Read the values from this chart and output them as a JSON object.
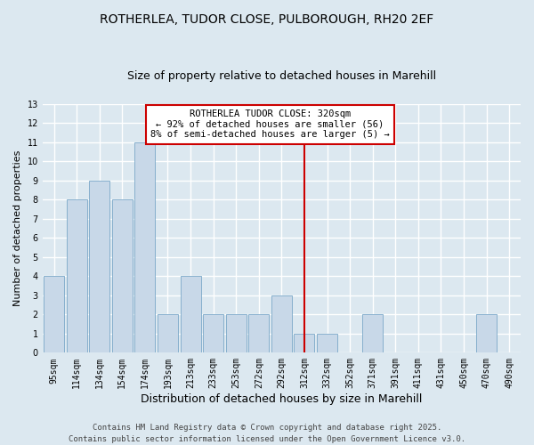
{
  "title_line1": "ROTHERLEA, TUDOR CLOSE, PULBOROUGH, RH20 2EF",
  "title_line2": "Size of property relative to detached houses in Marehill",
  "xlabel": "Distribution of detached houses by size in Marehill",
  "ylabel": "Number of detached properties",
  "categories": [
    "95sqm",
    "114sqm",
    "134sqm",
    "154sqm",
    "174sqm",
    "193sqm",
    "213sqm",
    "233sqm",
    "253sqm",
    "272sqm",
    "292sqm",
    "312sqm",
    "332sqm",
    "352sqm",
    "371sqm",
    "391sqm",
    "411sqm",
    "431sqm",
    "450sqm",
    "470sqm",
    "490sqm"
  ],
  "values": [
    4,
    8,
    9,
    8,
    11,
    2,
    4,
    2,
    2,
    2,
    3,
    1,
    1,
    0,
    2,
    0,
    0,
    0,
    0,
    2,
    0
  ],
  "bar_color": "#c8d8e8",
  "bar_edge_color": "#7aa8c8",
  "vline_x_index": 11,
  "vline_color": "#cc0000",
  "annotation_text": "ROTHERLEA TUDOR CLOSE: 320sqm\n← 92% of detached houses are smaller (56)\n8% of semi-detached houses are larger (5) →",
  "annotation_box_color": "white",
  "annotation_box_edge_color": "#cc0000",
  "ylim": [
    0,
    13
  ],
  "yticks": [
    0,
    1,
    2,
    3,
    4,
    5,
    6,
    7,
    8,
    9,
    10,
    11,
    12,
    13
  ],
  "background_color": "#dce8f0",
  "grid_color": "white",
  "footer_text": "Contains HM Land Registry data © Crown copyright and database right 2025.\nContains public sector information licensed under the Open Government Licence v3.0.",
  "title_fontsize": 10,
  "subtitle_fontsize": 9,
  "xlabel_fontsize": 9,
  "ylabel_fontsize": 8,
  "tick_fontsize": 7,
  "annotation_fontsize": 7.5,
  "footer_fontsize": 6.5
}
